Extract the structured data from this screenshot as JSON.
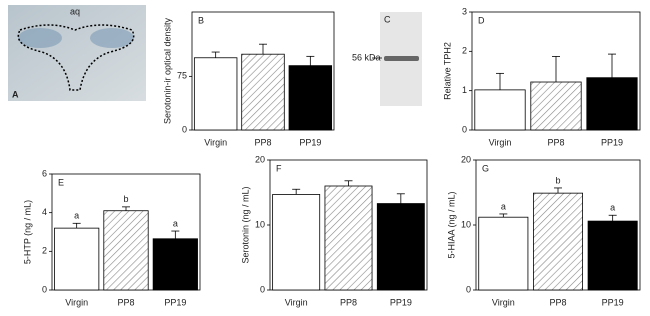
{
  "images": [
    {
      "panel": "A",
      "label": "aq"
    },
    {
      "panel": "C",
      "label": "56 kDa"
    }
  ],
  "chart_data": [
    {
      "type": "bar",
      "panel": "B",
      "ylabel": "Serotonin-ir optical density",
      "categories": [
        "Virgin",
        "PP8",
        "PP19"
      ],
      "series": [
        {
          "values": [
            101,
            106,
            90
          ],
          "errors": [
            8,
            14,
            13
          ]
        }
      ],
      "ylim": [
        0,
        165
      ],
      "yticks": [
        0,
        75
      ],
      "bar_styles": [
        "white",
        "hatched",
        "black"
      ]
    },
    {
      "type": "bar",
      "panel": "D",
      "ylabel": "Relative TPH2",
      "categories": [
        "Virgin",
        "PP8",
        "PP19"
      ],
      "series": [
        {
          "values": [
            1.02,
            1.22,
            1.33
          ],
          "errors": [
            0.42,
            0.65,
            0.6
          ]
        }
      ],
      "ylim": [
        0,
        3
      ],
      "yticks": [
        0,
        1,
        2,
        3
      ],
      "bar_styles": [
        "white",
        "hatched",
        "black"
      ]
    },
    {
      "type": "bar",
      "panel": "E",
      "ylabel": "5-HTP (ng / mL)",
      "categories": [
        "Virgin",
        "PP8",
        "PP19"
      ],
      "series": [
        {
          "values": [
            3.2,
            4.1,
            2.65
          ],
          "errors": [
            0.25,
            0.2,
            0.4
          ]
        }
      ],
      "ylim": [
        0,
        6
      ],
      "yticks": [
        0,
        2,
        4,
        6
      ],
      "bar_styles": [
        "white",
        "hatched",
        "black"
      ],
      "annotations": [
        "a",
        "b",
        "a"
      ]
    },
    {
      "type": "bar",
      "panel": "F",
      "ylabel": "Serotonin (ng / mL)",
      "categories": [
        "Virgin",
        "PP8",
        "PP19"
      ],
      "series": [
        {
          "values": [
            14.7,
            16,
            13.3
          ],
          "errors": [
            0.8,
            0.8,
            1.5
          ]
        }
      ],
      "ylim": [
        0,
        20
      ],
      "yticks": [
        0,
        10,
        20
      ],
      "bar_styles": [
        "white",
        "hatched",
        "black"
      ]
    },
    {
      "type": "bar",
      "panel": "G",
      "ylabel": "5-HIAA (ng / mL)",
      "categories": [
        "Virgin",
        "PP8",
        "PP19"
      ],
      "series": [
        {
          "values": [
            11.2,
            14.9,
            10.6
          ],
          "errors": [
            0.5,
            0.8,
            0.9
          ]
        }
      ],
      "ylim": [
        0,
        20
      ],
      "yticks": [
        0,
        10,
        20
      ],
      "bar_styles": [
        "white",
        "hatched",
        "black"
      ],
      "annotations": [
        "a",
        "b",
        "a"
      ]
    }
  ]
}
